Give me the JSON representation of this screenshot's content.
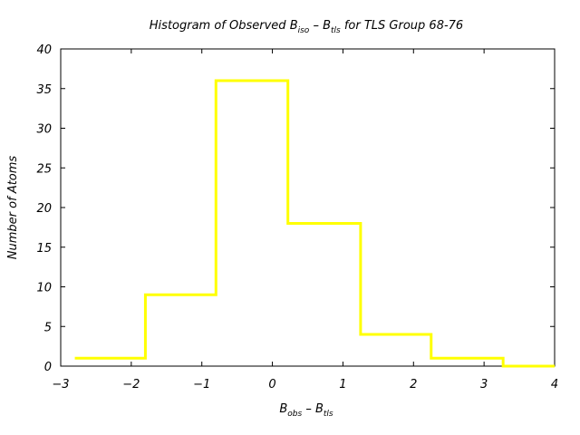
{
  "chart_data": {
    "type": "histogram",
    "title": {
      "prefix": "Histogram of Observed B",
      "sub1": "iso",
      "middle": " – B",
      "sub2": "tls",
      "suffix": " for TLS Group 68-76"
    },
    "xlabel": {
      "main1": "B",
      "sub1": "obs",
      "main2": " – B",
      "sub2": "tls"
    },
    "ylabel": "Number of Atoms",
    "xlim": [
      -3,
      4
    ],
    "ylim": [
      0,
      40
    ],
    "x_ticks": [
      -3,
      -2,
      -1,
      0,
      1,
      2,
      3,
      4
    ],
    "x_tick_labels": [
      "−3",
      "−2",
      "−1",
      "0",
      "1",
      "2",
      "3",
      "4"
    ],
    "y_ticks": [
      0,
      5,
      10,
      15,
      20,
      25,
      30,
      35,
      40
    ],
    "y_tick_labels": [
      "0",
      "5",
      "10",
      "15",
      "20",
      "25",
      "30",
      "35",
      "40"
    ],
    "bins": [
      {
        "start": -2.8,
        "end": -1.8,
        "count": 1
      },
      {
        "start": -1.8,
        "end": -0.8,
        "count": 9
      },
      {
        "start": -0.8,
        "end": 0.22,
        "count": 36
      },
      {
        "start": 0.22,
        "end": 1.25,
        "count": 18
      },
      {
        "start": 1.25,
        "end": 2.25,
        "count": 4
      },
      {
        "start": 2.25,
        "end": 3.27,
        "count": 1
      },
      {
        "start": 3.27,
        "end": 4.0,
        "count": 0
      }
    ],
    "line_color": "#ffff00",
    "grid": false
  }
}
